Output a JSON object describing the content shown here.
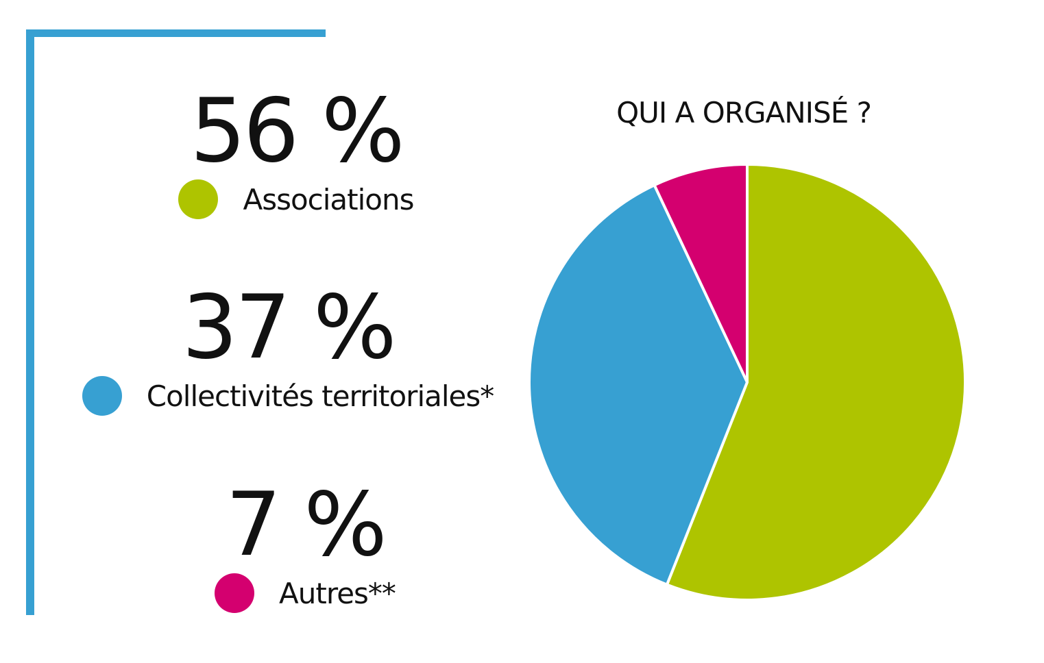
{
  "chart_data": {
    "type": "pie",
    "title": "QUI A ORGANISÉ ?",
    "slices": [
      {
        "label": "Associations",
        "value": 56,
        "display": "56 %",
        "color": "#aec400"
      },
      {
        "label": "Collectivités territoriales*",
        "value": 37,
        "display": "37 %",
        "color": "#37a0d2"
      },
      {
        "label": "Autres**",
        "value": 7,
        "display": "7 %",
        "color": "#d4006f"
      }
    ],
    "start_angle_deg": 0,
    "direction": "clockwise",
    "legend": "left"
  },
  "colors": {
    "frame": "#37a0d2",
    "slice_border": "#ffffff"
  }
}
